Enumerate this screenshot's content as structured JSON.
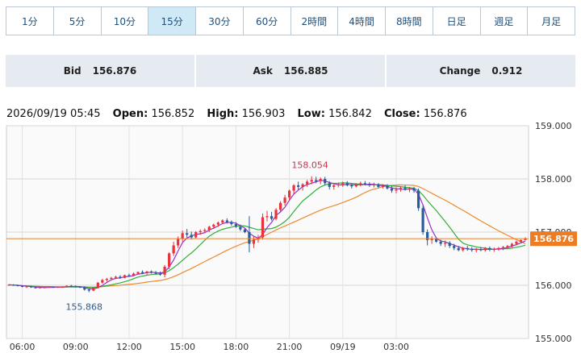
{
  "tabs": [
    {
      "label": "1分",
      "active": false
    },
    {
      "label": "5分",
      "active": false
    },
    {
      "label": "10分",
      "active": false
    },
    {
      "label": "15分",
      "active": true
    },
    {
      "label": "30分",
      "active": false
    },
    {
      "label": "60分",
      "active": false
    },
    {
      "label": "2時間",
      "active": false
    },
    {
      "label": "4時間",
      "active": false
    },
    {
      "label": "8時間",
      "active": false
    },
    {
      "label": "日足",
      "active": false
    },
    {
      "label": "週足",
      "active": false
    },
    {
      "label": "月足",
      "active": false
    }
  ],
  "quotes": {
    "bid_label": "Bid",
    "bid_value": "156.876",
    "ask_label": "Ask",
    "ask_value": "156.885",
    "change_label": "Change",
    "change_value": "0.912"
  },
  "ohlc": {
    "datetime": "2026/09/19 05:45",
    "open_label": "Open:",
    "open": "156.852",
    "high_label": "High:",
    "high": "156.903",
    "low_label": "Low:",
    "low": "156.842",
    "close_label": "Close:",
    "close": "156.876"
  },
  "colors": {
    "up": "#e8323c",
    "down": "#2a5d9b",
    "ma_short": "#9b30c8",
    "ma_mid": "#2fae3a",
    "ma_long": "#ee8a2e",
    "price_line": "#ee7d22",
    "grid": "#d6d6d6"
  },
  "chart_data": {
    "type": "candlestick",
    "ylim": [
      155.0,
      159.0
    ],
    "y_ticks": [
      "155.000",
      "156.000",
      "157.000",
      "158.000",
      "159.000"
    ],
    "x_ticks": [
      "06:00",
      "09:00",
      "12:00",
      "15:00",
      "18:00",
      "21:00",
      "09/19",
      "03:00"
    ],
    "current_price": "156.876",
    "annotations": [
      {
        "label": "158.054",
        "value": 158.054
      },
      {
        "label": "155.868",
        "value": 155.868
      }
    ],
    "candles": [
      [
        156.0,
        156.02,
        155.99,
        156.01
      ],
      [
        156.01,
        156.02,
        155.99,
        156.0
      ],
      [
        156.0,
        156.01,
        155.98,
        155.99
      ],
      [
        155.99,
        156.0,
        155.96,
        155.97
      ],
      [
        155.97,
        155.99,
        155.95,
        155.98
      ],
      [
        155.98,
        155.99,
        155.95,
        155.96
      ],
      [
        155.96,
        155.98,
        155.94,
        155.95
      ],
      [
        155.95,
        155.97,
        155.94,
        155.96
      ],
      [
        155.96,
        155.97,
        155.95,
        155.96
      ],
      [
        155.96,
        155.98,
        155.95,
        155.97
      ],
      [
        155.97,
        155.98,
        155.95,
        155.96
      ],
      [
        155.96,
        155.98,
        155.95,
        155.97
      ],
      [
        155.97,
        155.98,
        155.96,
        155.97
      ],
      [
        155.97,
        156.0,
        155.96,
        155.99
      ],
      [
        155.99,
        156.01,
        155.97,
        155.98
      ],
      [
        155.98,
        156.0,
        155.96,
        155.97
      ],
      [
        155.97,
        155.98,
        155.95,
        155.96
      ],
      [
        155.96,
        155.98,
        155.9,
        155.92
      ],
      [
        155.92,
        155.94,
        155.87,
        155.9
      ],
      [
        155.9,
        155.96,
        155.89,
        155.95
      ],
      [
        155.95,
        156.06,
        155.94,
        156.05
      ],
      [
        156.05,
        156.12,
        156.03,
        156.1
      ],
      [
        156.1,
        156.14,
        156.07,
        156.12
      ],
      [
        156.12,
        156.16,
        156.1,
        156.14
      ],
      [
        156.14,
        156.18,
        156.12,
        156.16
      ],
      [
        156.16,
        156.19,
        156.12,
        156.14
      ],
      [
        156.14,
        156.2,
        156.13,
        156.19
      ],
      [
        156.19,
        156.22,
        156.16,
        156.18
      ],
      [
        156.18,
        156.24,
        156.17,
        156.22
      ],
      [
        156.22,
        156.26,
        156.2,
        156.25
      ],
      [
        156.25,
        156.28,
        156.21,
        156.23
      ],
      [
        156.23,
        156.27,
        156.2,
        156.26
      ],
      [
        156.26,
        156.28,
        156.22,
        156.24
      ],
      [
        156.24,
        156.27,
        156.2,
        156.22
      ],
      [
        156.22,
        156.26,
        156.18,
        156.2
      ],
      [
        156.2,
        156.38,
        156.15,
        156.35
      ],
      [
        156.35,
        156.62,
        156.3,
        156.6
      ],
      [
        156.6,
        156.82,
        156.55,
        156.75
      ],
      [
        156.75,
        156.92,
        156.7,
        156.88
      ],
      [
        156.88,
        157.03,
        156.82,
        156.98
      ],
      [
        156.98,
        157.06,
        156.9,
        156.95
      ],
      [
        156.95,
        157.01,
        156.86,
        156.9
      ],
      [
        156.9,
        157.02,
        156.88,
        157.0
      ],
      [
        157.0,
        157.05,
        156.95,
        157.02
      ],
      [
        157.02,
        157.07,
        156.98,
        157.04
      ],
      [
        157.04,
        157.12,
        157.0,
        157.1
      ],
      [
        157.1,
        157.16,
        157.06,
        157.14
      ],
      [
        157.14,
        157.2,
        157.1,
        157.18
      ],
      [
        157.18,
        157.24,
        157.15,
        157.22
      ],
      [
        157.22,
        157.26,
        157.16,
        157.19
      ],
      [
        157.19,
        157.22,
        157.12,
        157.15
      ],
      [
        157.15,
        157.19,
        157.08,
        157.1
      ],
      [
        157.1,
        157.14,
        157.02,
        157.05
      ],
      [
        157.05,
        157.08,
        156.98,
        157.0
      ],
      [
        157.0,
        157.3,
        156.62,
        156.78
      ],
      [
        156.78,
        156.92,
        156.7,
        156.86
      ],
      [
        156.86,
        156.95,
        156.8,
        156.9
      ],
      [
        156.9,
        157.35,
        156.86,
        157.28
      ],
      [
        157.28,
        157.4,
        157.2,
        157.3
      ],
      [
        157.3,
        157.38,
        157.22,
        157.25
      ],
      [
        157.25,
        157.45,
        157.22,
        157.42
      ],
      [
        157.42,
        157.58,
        157.38,
        157.55
      ],
      [
        157.55,
        157.7,
        157.5,
        157.65
      ],
      [
        157.65,
        157.8,
        157.6,
        157.78
      ],
      [
        157.78,
        157.9,
        157.72,
        157.88
      ],
      [
        157.88,
        157.95,
        157.8,
        157.85
      ],
      [
        157.85,
        157.92,
        157.78,
        157.9
      ],
      [
        157.9,
        157.98,
        157.85,
        157.95
      ],
      [
        157.95,
        158.05,
        157.9,
        157.98
      ],
      [
        157.98,
        158.04,
        157.92,
        157.96
      ],
      [
        157.96,
        158.03,
        157.9,
        158.0
      ],
      [
        158.0,
        158.04,
        157.88,
        157.92
      ],
      [
        157.92,
        157.96,
        157.8,
        157.85
      ],
      [
        157.85,
        157.92,
        157.8,
        157.88
      ],
      [
        157.88,
        157.93,
        157.84,
        157.9
      ],
      [
        157.9,
        157.95,
        157.85,
        157.92
      ],
      [
        157.92,
        157.96,
        157.86,
        157.88
      ],
      [
        157.88,
        157.92,
        157.82,
        157.86
      ],
      [
        157.86,
        157.92,
        157.84,
        157.9
      ],
      [
        157.9,
        157.95,
        157.86,
        157.92
      ],
      [
        157.92,
        157.96,
        157.88,
        157.9
      ],
      [
        157.9,
        157.94,
        157.85,
        157.88
      ],
      [
        157.88,
        157.93,
        157.84,
        157.9
      ],
      [
        157.9,
        157.92,
        157.83,
        157.85
      ],
      [
        157.85,
        157.9,
        157.82,
        157.87
      ],
      [
        157.87,
        157.9,
        157.8,
        157.82
      ],
      [
        157.82,
        157.87,
        157.74,
        157.78
      ],
      [
        157.78,
        157.84,
        157.73,
        157.8
      ],
      [
        157.8,
        157.86,
        157.76,
        157.83
      ],
      [
        157.83,
        157.88,
        157.78,
        157.8
      ],
      [
        157.8,
        157.85,
        157.75,
        157.82
      ],
      [
        157.82,
        157.85,
        157.74,
        157.78
      ],
      [
        157.78,
        157.82,
        157.4,
        157.45
      ],
      [
        157.45,
        157.5,
        156.95,
        157.0
      ],
      [
        157.0,
        157.05,
        156.75,
        156.85
      ],
      [
        156.85,
        156.92,
        156.78,
        156.88
      ],
      [
        156.88,
        156.9,
        156.8,
        156.82
      ],
      [
        156.82,
        156.86,
        156.74,
        156.78
      ],
      [
        156.78,
        156.84,
        156.72,
        156.8
      ],
      [
        156.8,
        156.83,
        156.7,
        156.74
      ],
      [
        156.74,
        156.78,
        156.66,
        156.7
      ],
      [
        156.7,
        156.74,
        156.64,
        156.66
      ],
      [
        156.66,
        156.72,
        156.63,
        156.7
      ],
      [
        156.7,
        156.74,
        156.65,
        156.68
      ],
      [
        156.68,
        156.72,
        156.63,
        156.66
      ],
      [
        156.66,
        156.7,
        156.62,
        156.68
      ],
      [
        156.68,
        156.72,
        156.64,
        156.66
      ],
      [
        156.66,
        156.72,
        156.63,
        156.7
      ],
      [
        156.7,
        156.73,
        156.64,
        156.67
      ],
      [
        156.67,
        156.71,
        156.63,
        156.68
      ],
      [
        156.68,
        156.72,
        156.65,
        156.7
      ],
      [
        156.7,
        156.74,
        156.66,
        156.72
      ],
      [
        156.72,
        156.76,
        156.68,
        156.74
      ],
      [
        156.74,
        156.8,
        156.71,
        156.78
      ],
      [
        156.78,
        156.84,
        156.75,
        156.82
      ],
      [
        156.82,
        156.86,
        156.8,
        156.85
      ],
      [
        156.852,
        156.903,
        156.842,
        156.876
      ]
    ]
  }
}
